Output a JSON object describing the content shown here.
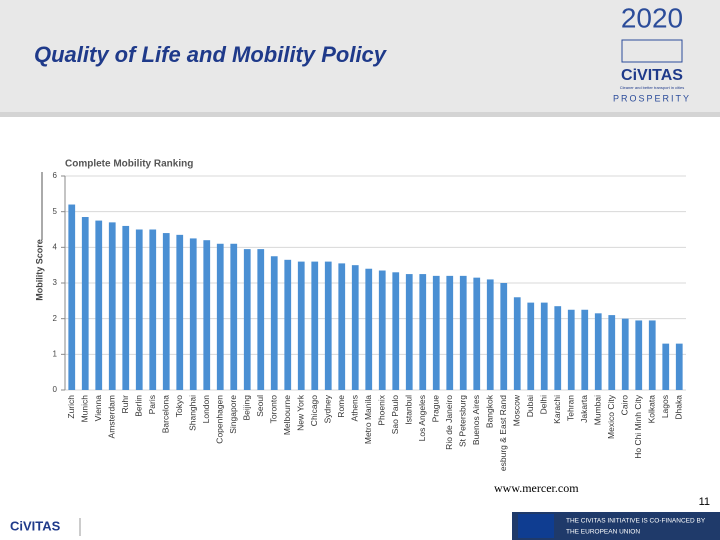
{
  "header": {
    "title": "Quality of Life and Mobility Policy",
    "logo_year": "2020",
    "logo_name": "CiVITAS",
    "logo_tagline": "Cleaner and better transport in cities",
    "logo_project": "PROSPERITY"
  },
  "chart_data": {
    "type": "bar",
    "title": "Complete Mobility Ranking",
    "y_label": "Mobility Score",
    "categories": [
      "Zurich",
      "Munich",
      "Vienna",
      "Amsterdam",
      "Ruhr",
      "Berlin",
      "Paris",
      "Barcelona",
      "Tokyo",
      "Shanghai",
      "London",
      "Copenhagen",
      "Singapore",
      "Beijing",
      "Seoul",
      "Toronto",
      "Melbourne",
      "New York",
      "Chicago",
      "Sydney",
      "Rome",
      "Athens",
      "Metro Manila",
      "Phoenix",
      "Sao Paulo",
      "Istanbul",
      "Los Angeles",
      "Prague",
      "Rio de Janeiro",
      "St Petersburg",
      "Buenos Aires",
      "Bangkok",
      "esburg & East Rand",
      "Moscow",
      "Dubai",
      "Delhi",
      "Karachi",
      "Tehran",
      "Jakarta",
      "Mumbai",
      "Mexico City",
      "Cairo",
      "Ho Chi Minh City",
      "Kolkata",
      "Lagos",
      "Dhaka"
    ],
    "values": [
      5.2,
      4.85,
      4.75,
      4.7,
      4.6,
      4.5,
      4.5,
      4.4,
      4.35,
      4.25,
      4.2,
      4.1,
      4.1,
      3.95,
      3.95,
      3.75,
      3.65,
      3.6,
      3.6,
      3.6,
      3.55,
      3.5,
      3.4,
      3.35,
      3.3,
      3.25,
      3.25,
      3.2,
      3.2,
      3.2,
      3.15,
      3.1,
      3.0,
      2.6,
      2.45,
      2.45,
      2.35,
      2.25,
      2.25,
      2.15,
      2.1,
      2.0,
      1.95,
      1.95,
      1.3,
      1.3
    ],
    "color": "#4a8fd3",
    "ylim": [
      0,
      6
    ],
    "yticks": [
      0,
      1,
      2,
      3,
      4,
      5,
      6
    ],
    "grid": true
  },
  "source": "www.mercer.com",
  "page_number": "11",
  "footer": {
    "logo": "CiVITAS",
    "eu_line1": "THE CIVITAS INITIATIVE IS CO-FINANCED BY",
    "eu_line2": "THE EUROPEAN UNION"
  }
}
